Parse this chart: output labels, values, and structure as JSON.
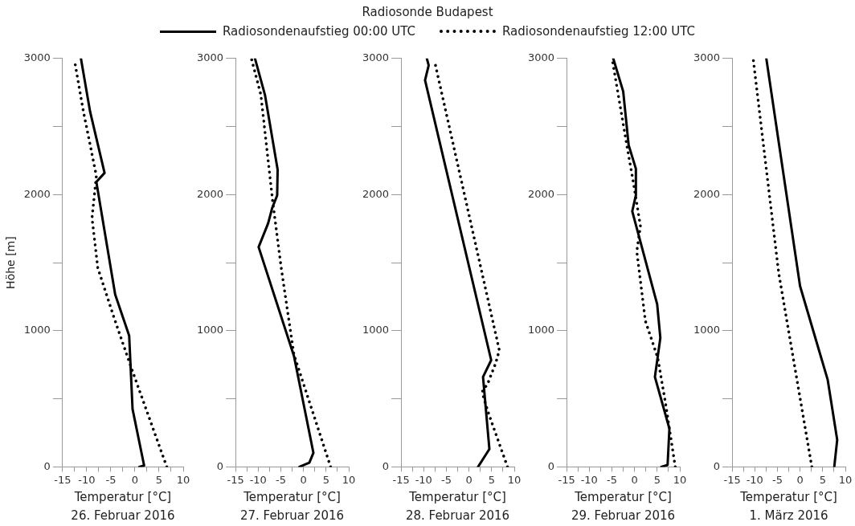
{
  "chart_data": [
    {
      "type": "line",
      "legend": "top",
      "xlabel": "Temperatur [°C]",
      "ylabel": "Höhe [m]",
      "annotations": [
        "26. Februar 2016"
      ],
      "marker": "none",
      "xlim": [
        -15,
        10
      ],
      "ylim": [
        0,
        3000
      ],
      "xticks": [
        -15,
        {
          "value": -12.5,
          "label": null
        },
        -10,
        {
          "value": -7.5,
          "label": null
        },
        -5,
        {
          "value": -2.5,
          "label": null
        },
        0,
        {
          "value": 2.5,
          "label": null
        },
        5,
        {
          "value": 7.5,
          "label": null
        },
        10
      ],
      "yticks": [
        0,
        {
          "value": 500,
          "label": null
        },
        1000,
        {
          "value": 1500,
          "label": null
        },
        2000,
        {
          "value": 2500,
          "label": null
        },
        3000
      ],
      "series": [
        {
          "name": "Radiosondenaufstieg 00:00 UTC",
          "color": "#000000",
          "line_style": "solid",
          "x": [
            0.9,
            1.9,
            -0.5,
            -1.2,
            -4.1,
            -8.0,
            -6.3,
            -9.3,
            -11.2
          ],
          "values": [
            0,
            10,
            425,
            964,
            1266,
            2093,
            2159,
            2610,
            3000
          ]
        },
        {
          "name": "Radiosondenaufstieg 12:00 UTC",
          "color": "#000000",
          "line_style": "dotted",
          "x": [
            6.6,
            -0.7,
            -4.3,
            -7.7,
            -8.9,
            -8.0,
            -10.8,
            -12.4
          ],
          "values": [
            0,
            722,
            1092,
            1461,
            1830,
            2138,
            2631,
            2959
          ]
        }
      ]
    },
    {
      "type": "line",
      "xlabel": "Temperatur [°C]",
      "annotations": [
        "27. Februar 2016"
      ],
      "marker": "none",
      "xlim": [
        -15,
        10
      ],
      "ylim": [
        0,
        3000
      ],
      "xticks": [
        -15,
        {
          "value": -12.5,
          "label": null
        },
        -10,
        {
          "value": -7.5,
          "label": null
        },
        -5,
        {
          "value": -2.5,
          "label": null
        },
        0,
        {
          "value": 2.5,
          "label": null
        },
        5,
        {
          "value": 7.5,
          "label": null
        },
        10
      ],
      "yticks": [
        0,
        {
          "value": 500,
          "label": null
        },
        1000,
        {
          "value": 1500,
          "label": null
        },
        2000,
        {
          "value": 2500,
          "label": null
        },
        3000
      ],
      "series": [
        {
          "color": "#000000",
          "line_style": "solid",
          "x": [
            -0.9,
            1.3,
            2.2,
            -2.1,
            -9.9,
            -9.4,
            -7.8,
            -6.9,
            -5.8,
            -5.7,
            -8.5,
            -10.7
          ],
          "values": [
            0,
            31,
            103,
            815,
            1615,
            1656,
            1789,
            1902,
            1995,
            2183,
            2733,
            3000
          ]
        },
        {
          "color": "#000000",
          "line_style": "dotted",
          "x": [
            6.0,
            -2.1,
            -4.9,
            -6.8,
            -9.4,
            -11.5
          ],
          "values": [
            0,
            825,
            1461,
            1953,
            2733,
            3000
          ]
        }
      ]
    },
    {
      "type": "line",
      "title": "Radiosonde Budapest",
      "xlabel": "Temperatur [°C]",
      "annotations": [
        "28. Februar 2016"
      ],
      "marker": "none",
      "xlim": [
        -15,
        10
      ],
      "ylim": [
        0,
        3000
      ],
      "xticks": [
        -15,
        {
          "value": -12.5,
          "label": null
        },
        -10,
        {
          "value": -7.5,
          "label": null
        },
        -5,
        {
          "value": -2.5,
          "label": null
        },
        0,
        {
          "value": 2.5,
          "label": null
        },
        5,
        {
          "value": 7.5,
          "label": null
        },
        10
      ],
      "yticks": [
        0,
        {
          "value": 500,
          "label": null
        },
        1000,
        {
          "value": 1500,
          "label": null
        },
        2000,
        {
          "value": 2500,
          "label": null
        },
        3000
      ],
      "series": [
        {
          "color": "#000000",
          "line_style": "solid",
          "x": [
            2.0,
            4.5,
            3.1,
            4.9,
            -9.7,
            -8.9,
            -9.3
          ],
          "values": [
            0,
            131,
            661,
            784,
            2840,
            2949,
            3000
          ]
        },
        {
          "color": "#000000",
          "line_style": "dotted",
          "x": [
            8.5,
            4.1,
            3.2,
            3.0,
            4.1,
            5.9,
            6.7,
            -7.6
          ],
          "values": [
            0,
            414,
            513,
            558,
            609,
            763,
            856,
            2980
          ]
        }
      ]
    },
    {
      "type": "line",
      "xlabel": "Temperatur [°C]",
      "annotations": [
        "29. Februar 2016"
      ],
      "marker": "none",
      "xlim": [
        -15,
        10
      ],
      "ylim": [
        0,
        3000
      ],
      "xticks": [
        -15,
        {
          "value": -12.5,
          "label": null
        },
        -10,
        {
          "value": -7.5,
          "label": null
        },
        -5,
        {
          "value": -2.5,
          "label": null
        },
        0,
        {
          "value": 2.5,
          "label": null
        },
        5,
        {
          "value": 7.5,
          "label": null
        },
        10
      ],
      "yticks": [
        0,
        {
          "value": 500,
          "label": null
        },
        1000,
        {
          "value": 1500,
          "label": null
        },
        2000,
        {
          "value": 2500,
          "label": null
        },
        3000
      ],
      "series": [
        {
          "color": "#000000",
          "line_style": "solid",
          "x": [
            5.9,
            7.3,
            7.7,
            4.5,
            5.7,
            5.0,
            -0.5,
            0.3,
            0.3,
            -1.3,
            -2.5,
            -4.7
          ],
          "values": [
            0,
            14,
            281,
            661,
            948,
            1194,
            1878,
            1995,
            2190,
            2364,
            2758,
            3000
          ]
        },
        {
          "color": "#000000",
          "line_style": "dotted",
          "x": [
            9.0,
            6.9,
            5.1,
            2.4,
            0.5,
            1.3,
            -0.3,
            -1.5,
            -4.8
          ],
          "values": [
            0,
            456,
            804,
            1071,
            1584,
            1769,
            2097,
            2323,
            2969
          ]
        }
      ]
    },
    {
      "type": "line",
      "xlabel": "Temperatur [°C]",
      "annotations": [
        "1. März 2016"
      ],
      "marker": "none",
      "xlim": [
        -15,
        10
      ],
      "ylim": [
        0,
        3000
      ],
      "xticks": [
        -15,
        {
          "value": -12.5,
          "label": null
        },
        -10,
        {
          "value": -7.5,
          "label": null
        },
        -5,
        {
          "value": -2.5,
          "label": null
        },
        0,
        {
          "value": 2.5,
          "label": null
        },
        5,
        {
          "value": 7.5,
          "label": null
        },
        10
      ],
      "yticks": [
        0,
        {
          "value": 500,
          "label": null
        },
        1000,
        {
          "value": 1500,
          "label": null
        },
        2000,
        {
          "value": 2500,
          "label": null
        },
        3000
      ],
      "series": [
        {
          "color": "#000000",
          "line_style": "solid",
          "x": [
            7.55,
            8.2,
            6.1,
            0.0,
            -7.45
          ],
          "values": [
            0,
            199,
            640,
            1328,
            3000
          ]
        },
        {
          "color": "#000000",
          "line_style": "dotted",
          "x": [
            2.6,
            -4.7,
            -10.3
          ],
          "values": [
            0,
            1421,
            2984
          ]
        }
      ]
    }
  ]
}
